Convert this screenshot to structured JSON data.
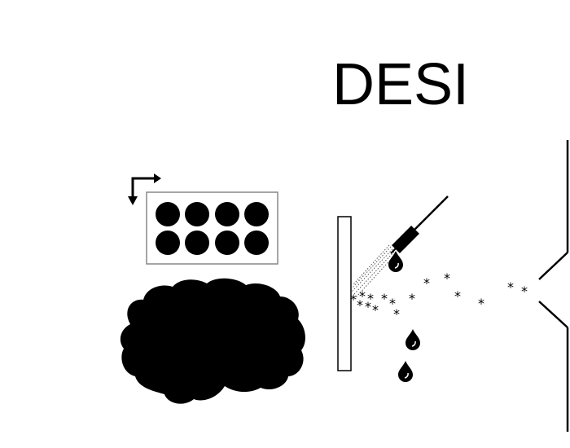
{
  "diagram": {
    "title": "DESI",
    "colors": {
      "ink": "#000000",
      "background": "#ffffff",
      "plate_border": "#888888",
      "spray_mist": "#555555"
    },
    "icons": {
      "brain": "brain-silhouette-icon",
      "plate": "sample-well-plate",
      "arrow": "corner-arrow-icon",
      "sprayer": "sprayer-needle-icon",
      "droplet": "droplet-icon",
      "ion": "asterisk-ion-icon",
      "inlet": "mass-spec-inlet"
    }
  }
}
